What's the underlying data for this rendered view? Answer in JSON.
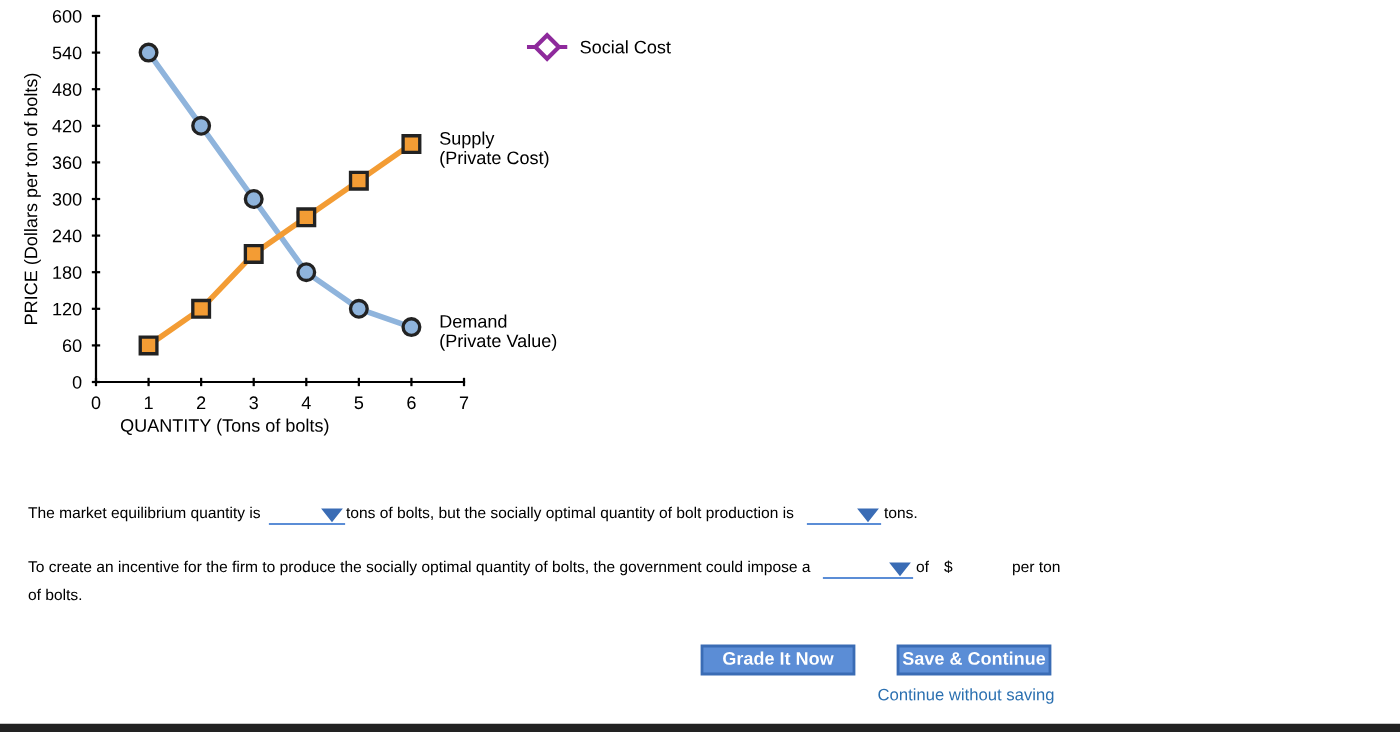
{
  "chart_data": {
    "type": "line",
    "xlabel": "QUANTITY (Tons of bolts)",
    "ylabel": "PRICE (Dollars per ton of bolts)",
    "x": [
      1,
      2,
      3,
      4,
      5,
      6
    ],
    "series": [
      {
        "name": "Demand\n(Private Value)",
        "color": "#8fb4dc",
        "marker": "circle",
        "values": [
          540,
          420,
          300,
          180,
          120,
          90
        ]
      },
      {
        "name": "Supply\n(Private Cost)",
        "color": "#f39c34",
        "marker": "square",
        "values": [
          60,
          120,
          210,
          270,
          330,
          390
        ]
      },
      {
        "name": "Social Cost",
        "color": "#8e2a9c",
        "marker": "diamond",
        "values": [
          null,
          null,
          null,
          null,
          null,
          null
        ]
      }
    ],
    "xlim": [
      0,
      7
    ],
    "xticks": [
      0,
      1,
      2,
      3,
      4,
      5,
      6,
      7
    ],
    "ylim": [
      0,
      600
    ],
    "yticks": [
      0,
      60,
      120,
      180,
      240,
      300,
      360,
      420,
      480,
      540,
      600
    ],
    "grid": false,
    "legend": "top right",
    "line_style": "solid",
    "annotations": [
      "The market equilibrium quantity is",
      "tons of bolts, but the socially optimal quantity of bolt production is",
      "tons.",
      "To create an incentive for the firm to produce the socially optimal quantity of bolts, the government could impose a",
      "of",
      "$",
      "per ton",
      "of bolts.",
      "Grade It Now",
      "Save & Continue",
      "Continue without saving"
    ]
  }
}
